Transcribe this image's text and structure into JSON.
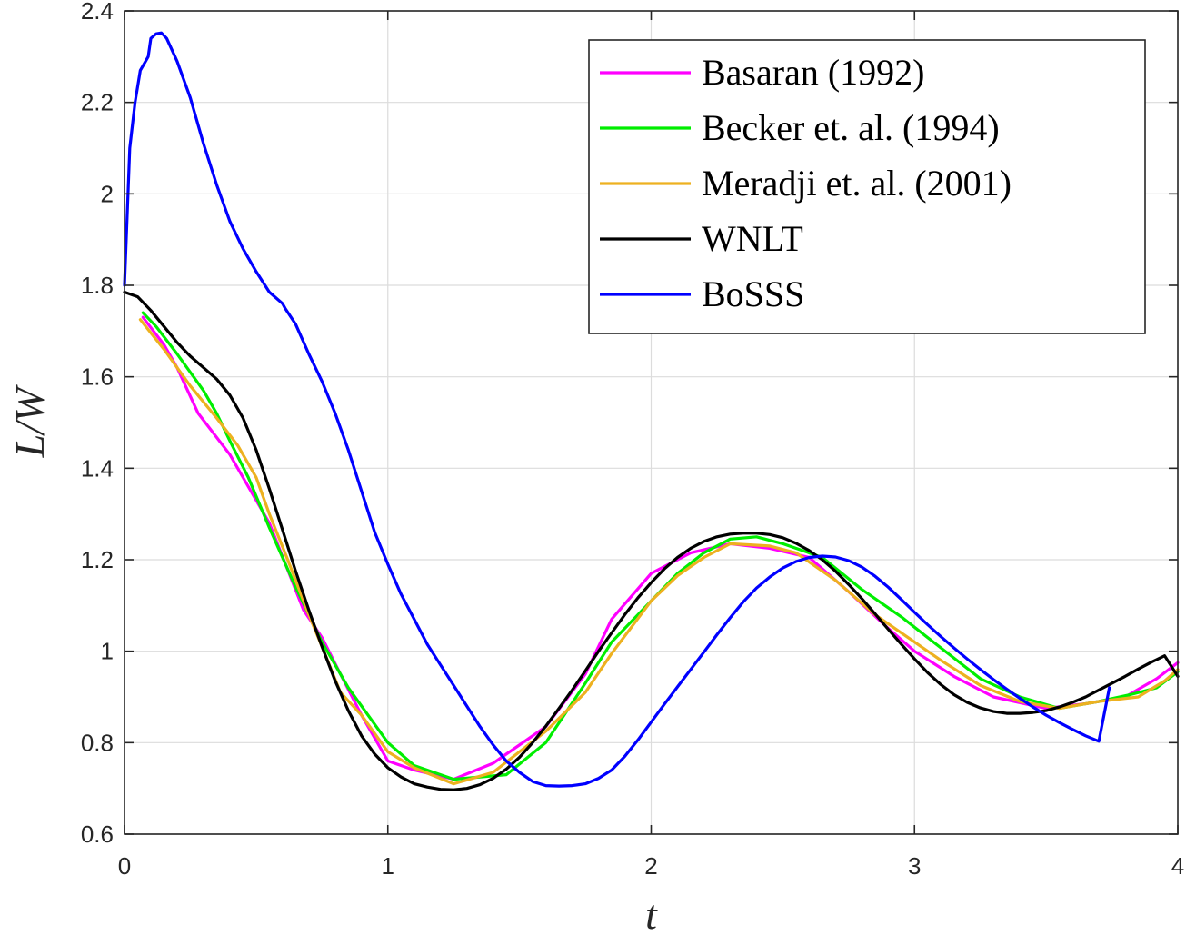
{
  "chart_data": {
    "type": "line",
    "title": "",
    "xlabel": "t",
    "ylabel": "L/W",
    "xlim": [
      0,
      4
    ],
    "ylim": [
      0.6,
      2.4
    ],
    "xticks": [
      0,
      1,
      2,
      3,
      4
    ],
    "yticks": [
      0.6,
      0.8,
      1,
      1.2,
      1.4,
      1.6,
      1.8,
      2,
      2.2,
      2.4
    ],
    "xtick_labels": [
      "0",
      "1",
      "2",
      "3",
      "4"
    ],
    "ytick_labels": [
      "0.6",
      "0.8",
      "1",
      "1.2",
      "1.4",
      "1.6",
      "1.8",
      "2",
      "2.2",
      "2.4"
    ],
    "grid": true,
    "legend_position": "top-right",
    "series": [
      {
        "name": "Basaran (1992)",
        "color": "#ff00ff",
        "x": [
          0.07,
          0.15,
          0.2,
          0.28,
          0.4,
          0.47,
          0.55,
          0.68,
          0.75,
          0.82,
          0.9,
          1.0,
          1.1,
          1.25,
          1.4,
          1.6,
          1.75,
          1.85,
          2.0,
          2.15,
          2.3,
          2.45,
          2.6,
          2.75,
          2.9,
          3.0,
          3.15,
          3.3,
          3.5,
          3.65,
          3.8,
          3.92,
          4.0
        ],
        "y": [
          1.73,
          1.67,
          1.62,
          1.52,
          1.43,
          1.36,
          1.28,
          1.09,
          1.03,
          0.95,
          0.86,
          0.76,
          0.74,
          0.72,
          0.755,
          0.835,
          0.95,
          1.07,
          1.17,
          1.215,
          1.235,
          1.225,
          1.205,
          1.13,
          1.05,
          1.0,
          0.945,
          0.9,
          0.875,
          0.885,
          0.9,
          0.94,
          0.975
        ]
      },
      {
        "name": "Becker et. al. (1994)",
        "color": "#00ee00",
        "x": [
          0.07,
          0.12,
          0.2,
          0.3,
          0.35,
          0.4,
          0.47,
          0.55,
          0.65,
          0.75,
          0.85,
          0.95,
          1.0,
          1.1,
          1.25,
          1.45,
          1.6,
          1.75,
          1.85,
          2.0,
          2.1,
          2.2,
          2.3,
          2.4,
          2.5,
          2.65,
          2.8,
          2.95,
          3.05,
          3.25,
          3.4,
          3.55,
          3.7,
          3.82,
          3.92,
          4.0
        ],
        "y": [
          1.74,
          1.71,
          1.65,
          1.57,
          1.52,
          1.46,
          1.38,
          1.27,
          1.14,
          1.02,
          0.92,
          0.84,
          0.8,
          0.75,
          0.72,
          0.73,
          0.8,
          0.93,
          1.02,
          1.11,
          1.17,
          1.215,
          1.245,
          1.25,
          1.235,
          1.205,
          1.135,
          1.075,
          1.03,
          0.94,
          0.9,
          0.875,
          0.89,
          0.905,
          0.92,
          0.955
        ]
      },
      {
        "name": "Meradji et. al. (2001)",
        "color": "#edb120",
        "x": [
          0.06,
          0.15,
          0.25,
          0.35,
          0.43,
          0.5,
          0.55,
          0.62,
          0.7,
          0.75,
          0.82,
          0.9,
          1.0,
          1.1,
          1.25,
          1.4,
          1.5,
          1.6,
          1.75,
          1.85,
          2.0,
          2.1,
          2.2,
          2.3,
          2.45,
          2.55,
          2.7,
          2.85,
          3.0,
          3.1,
          3.25,
          3.4,
          3.55,
          3.7,
          3.85,
          3.95,
          4.0
        ],
        "y": [
          1.725,
          1.66,
          1.58,
          1.51,
          1.45,
          1.38,
          1.3,
          1.2,
          1.08,
          1.01,
          0.91,
          0.86,
          0.78,
          0.745,
          0.71,
          0.735,
          0.78,
          0.825,
          0.91,
          0.995,
          1.11,
          1.165,
          1.205,
          1.235,
          1.23,
          1.215,
          1.155,
          1.08,
          1.02,
          0.98,
          0.925,
          0.89,
          0.875,
          0.89,
          0.9,
          0.935,
          0.96
        ]
      },
      {
        "name": "WNLT",
        "color": "#000000",
        "x": [
          0.0,
          0.05,
          0.1,
          0.15,
          0.2,
          0.25,
          0.3,
          0.35,
          0.4,
          0.45,
          0.5,
          0.55,
          0.6,
          0.65,
          0.7,
          0.75,
          0.8,
          0.85,
          0.9,
          0.95,
          1.0,
          1.05,
          1.1,
          1.15,
          1.2,
          1.25,
          1.3,
          1.35,
          1.4,
          1.45,
          1.5,
          1.55,
          1.6,
          1.65,
          1.7,
          1.75,
          1.8,
          1.85,
          1.9,
          1.95,
          2.0,
          2.05,
          2.1,
          2.15,
          2.2,
          2.25,
          2.3,
          2.35,
          2.4,
          2.45,
          2.5,
          2.55,
          2.6,
          2.65,
          2.7,
          2.75,
          2.8,
          2.85,
          2.9,
          2.95,
          3.0,
          3.05,
          3.1,
          3.15,
          3.2,
          3.25,
          3.3,
          3.35,
          3.4,
          3.45,
          3.5,
          3.55,
          3.6,
          3.65,
          3.7,
          3.75,
          3.8,
          3.85,
          3.9,
          3.95,
          4.0
        ],
        "y": [
          1.785,
          1.775,
          1.745,
          1.71,
          1.675,
          1.645,
          1.62,
          1.595,
          1.56,
          1.51,
          1.44,
          1.355,
          1.265,
          1.175,
          1.09,
          1.01,
          0.935,
          0.87,
          0.815,
          0.775,
          0.745,
          0.725,
          0.71,
          0.703,
          0.698,
          0.697,
          0.7,
          0.708,
          0.722,
          0.742,
          0.768,
          0.8,
          0.836,
          0.875,
          0.915,
          0.957,
          1.0,
          1.04,
          1.08,
          1.117,
          1.15,
          1.18,
          1.205,
          1.225,
          1.24,
          1.25,
          1.256,
          1.258,
          1.258,
          1.255,
          1.248,
          1.236,
          1.22,
          1.2,
          1.175,
          1.146,
          1.115,
          1.082,
          1.048,
          1.015,
          0.983,
          0.953,
          0.927,
          0.905,
          0.888,
          0.876,
          0.868,
          0.864,
          0.864,
          0.866,
          0.87,
          0.878,
          0.888,
          0.9,
          0.915,
          0.93,
          0.945,
          0.961,
          0.976,
          0.99,
          0.945
        ]
      },
      {
        "name": "BoSSS",
        "color": "#0000ff",
        "x": [
          0.0,
          0.02,
          0.04,
          0.06,
          0.08,
          0.09,
          0.1,
          0.12,
          0.14,
          0.16,
          0.2,
          0.25,
          0.3,
          0.35,
          0.4,
          0.45,
          0.5,
          0.55,
          0.6,
          0.61,
          0.65,
          0.7,
          0.75,
          0.8,
          0.85,
          0.9,
          0.95,
          1.0,
          1.05,
          1.1,
          1.15,
          1.2,
          1.25,
          1.3,
          1.35,
          1.4,
          1.45,
          1.5,
          1.55,
          1.6,
          1.65,
          1.7,
          1.75,
          1.8,
          1.85,
          1.9,
          1.95,
          2.0,
          2.05,
          2.1,
          2.15,
          2.2,
          2.25,
          2.3,
          2.35,
          2.4,
          2.45,
          2.5,
          2.55,
          2.6,
          2.65,
          2.7,
          2.75,
          2.8,
          2.85,
          2.9,
          2.95,
          3.0,
          3.05,
          3.1,
          3.15,
          3.2,
          3.25,
          3.3,
          3.35,
          3.4,
          3.45,
          3.5,
          3.55,
          3.6,
          3.65,
          3.7,
          3.74
        ],
        "y": [
          1.8,
          2.1,
          2.2,
          2.27,
          2.29,
          2.3,
          2.34,
          2.35,
          2.352,
          2.34,
          2.29,
          2.21,
          2.11,
          2.02,
          1.94,
          1.88,
          1.83,
          1.785,
          1.76,
          1.75,
          1.715,
          1.65,
          1.59,
          1.52,
          1.44,
          1.35,
          1.26,
          1.19,
          1.125,
          1.07,
          1.015,
          0.97,
          0.925,
          0.88,
          0.835,
          0.795,
          0.76,
          0.735,
          0.715,
          0.706,
          0.705,
          0.706,
          0.71,
          0.722,
          0.74,
          0.77,
          0.806,
          0.845,
          0.884,
          0.922,
          0.96,
          0.998,
          1.036,
          1.073,
          1.108,
          1.138,
          1.162,
          1.182,
          1.196,
          1.205,
          1.208,
          1.206,
          1.198,
          1.184,
          1.164,
          1.14,
          1.113,
          1.085,
          1.058,
          1.032,
          1.007,
          0.983,
          0.96,
          0.938,
          0.917,
          0.897,
          0.878,
          0.86,
          0.844,
          0.829,
          0.815,
          0.803,
          0.92
        ]
      }
    ]
  }
}
